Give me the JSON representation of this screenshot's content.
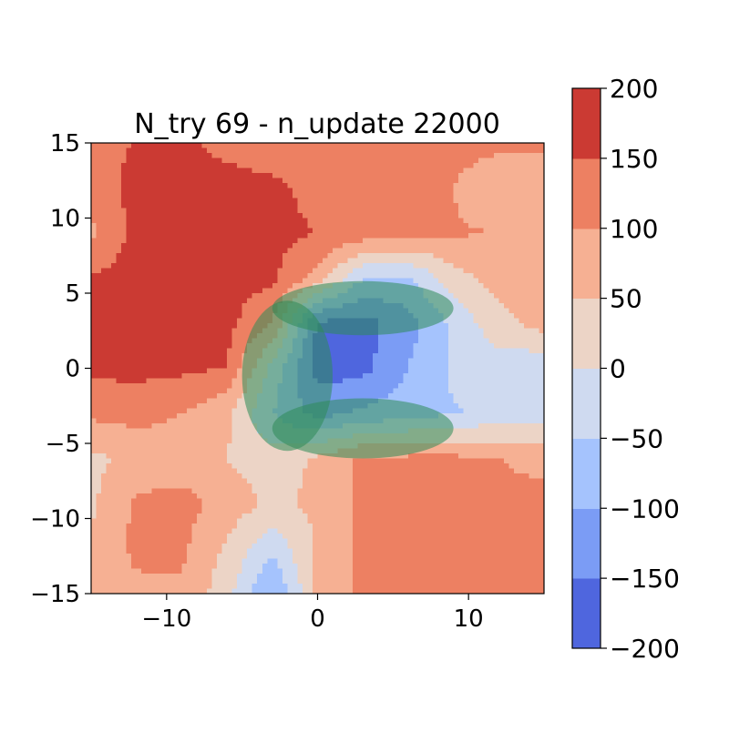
{
  "chart_data": {
    "type": "heatmap",
    "subtype": "filled-contour",
    "title": "N_try 69 - n_update 22000",
    "xlabel": "",
    "ylabel": "",
    "xlim": [
      -15,
      15
    ],
    "ylim": [
      -15,
      15
    ],
    "x_ticks": [
      -10,
      0,
      10
    ],
    "y_ticks": [
      -15,
      -10,
      -5,
      0,
      5,
      10,
      15
    ],
    "x_tick_labels": [
      "−10",
      "0",
      "10"
    ],
    "y_tick_labels": [
      "−15",
      "−10",
      "−5",
      "0",
      "5",
      "10",
      "15"
    ],
    "grid": false,
    "colormap": "coolwarm",
    "colorbar": {
      "levels": [
        -200,
        -150,
        -100,
        -50,
        0,
        50,
        100,
        150,
        200
      ],
      "tick_labels": [
        "−200",
        "−150",
        "−100",
        "−50",
        "0",
        "50",
        "100",
        "150",
        "200"
      ],
      "band_colors": [
        "#4f66de",
        "#7b9cf5",
        "#a5c3fd",
        "#cfdaf0",
        "#ecd4c6",
        "#f6b093",
        "#ed8062",
        "#cb3a33"
      ]
    },
    "field_grid_xy": {
      "x": [
        -15,
        -12,
        -9,
        -6,
        -3,
        0,
        3,
        6,
        9,
        12,
        15
      ],
      "y": [
        15,
        12,
        9,
        6,
        3,
        0,
        -3,
        -6,
        -9,
        -12,
        -15
      ],
      "z": [
        [
          120,
          155,
          162,
          130,
          110,
          110,
          110,
          115,
          118,
          112,
          105
        ],
        [
          115,
          170,
          175,
          175,
          165,
          130,
          120,
          110,
          100,
          60,
          80
        ],
        [
          90,
          165,
          175,
          170,
          165,
          150,
          130,
          120,
          105,
          100,
          75
        ],
        [
          155,
          170,
          175,
          170,
          160,
          80,
          -50,
          -60,
          30,
          70,
          75
        ],
        [
          155,
          165,
          170,
          165,
          100,
          -160,
          -170,
          -120,
          -40,
          35,
          70
        ],
        [
          160,
          165,
          160,
          150,
          -20,
          -170,
          -165,
          -100,
          -40,
          -30,
          -40
        ],
        [
          110,
          120,
          100,
          60,
          -50,
          -120,
          -90,
          -70,
          -55,
          -30,
          -20
        ],
        [
          40,
          60,
          70,
          50,
          20,
          60,
          110,
          110,
          110,
          100,
          90
        ],
        [
          40,
          110,
          120,
          80,
          40,
          60,
          110,
          115,
          110,
          110,
          110
        ],
        [
          60,
          110,
          110,
          40,
          -40,
          60,
          110,
          110,
          110,
          110,
          110
        ],
        [
          70,
          90,
          90,
          20,
          -110,
          60,
          110,
          110,
          110,
          110,
          110
        ]
      ]
    },
    "overlays": [
      {
        "shape": "ellipse",
        "color": "#2e8b57",
        "cx": 3,
        "cy": 4,
        "rx": 6,
        "ry": 1.8
      },
      {
        "shape": "ellipse",
        "color": "#2e8b57",
        "cx": 3,
        "cy": -4,
        "rx": 6,
        "ry": 2.0
      },
      {
        "shape": "ellipse",
        "color": "#2e8b57",
        "cx": -2,
        "cy": -0.5,
        "rx": 3,
        "ry": 5
      }
    ]
  }
}
